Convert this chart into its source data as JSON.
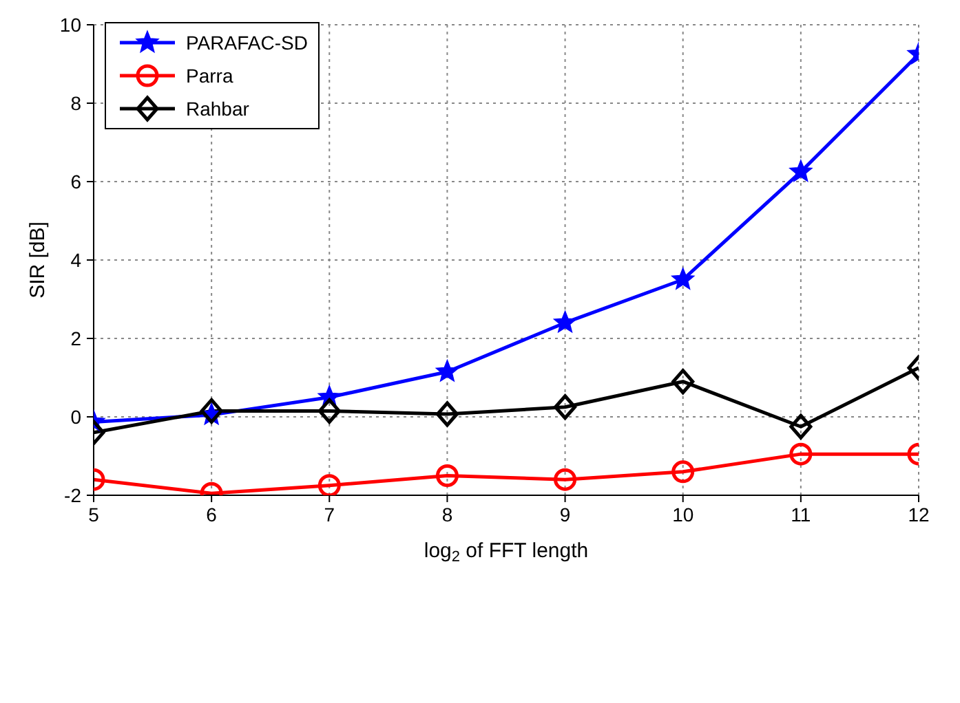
{
  "chart_data": {
    "type": "line",
    "xlabel": "log$_{2}$ of FFT length",
    "ylabel": "SIR [dB]",
    "x": [
      5,
      6,
      7,
      8,
      9,
      10,
      11,
      12
    ],
    "xlim": [
      5,
      12
    ],
    "xticks": [
      5,
      6,
      7,
      8,
      9,
      10,
      11,
      12
    ],
    "ylim": [
      -2,
      10
    ],
    "yticks": [
      -2,
      0,
      2,
      4,
      6,
      8,
      10
    ],
    "grid": true,
    "legend": "top left",
    "line_style": "solid",
    "series": [
      {
        "name": "PARAFAC-SD",
        "color": "#0000ff",
        "marker": "star",
        "values": [
          -0.13,
          0.05,
          0.5,
          1.15,
          2.4,
          3.5,
          6.25,
          9.25
        ]
      },
      {
        "name": "Parra",
        "color": "#ff0000",
        "marker": "circle",
        "values": [
          -1.6,
          -1.95,
          -1.75,
          -1.5,
          -1.6,
          -1.4,
          -0.95,
          -0.95
        ]
      },
      {
        "name": "Rahbar",
        "color": "#000000",
        "marker": "diamond",
        "values": [
          -0.4,
          0.15,
          0.15,
          0.07,
          0.25,
          0.9,
          -0.25,
          1.25
        ]
      }
    ]
  }
}
